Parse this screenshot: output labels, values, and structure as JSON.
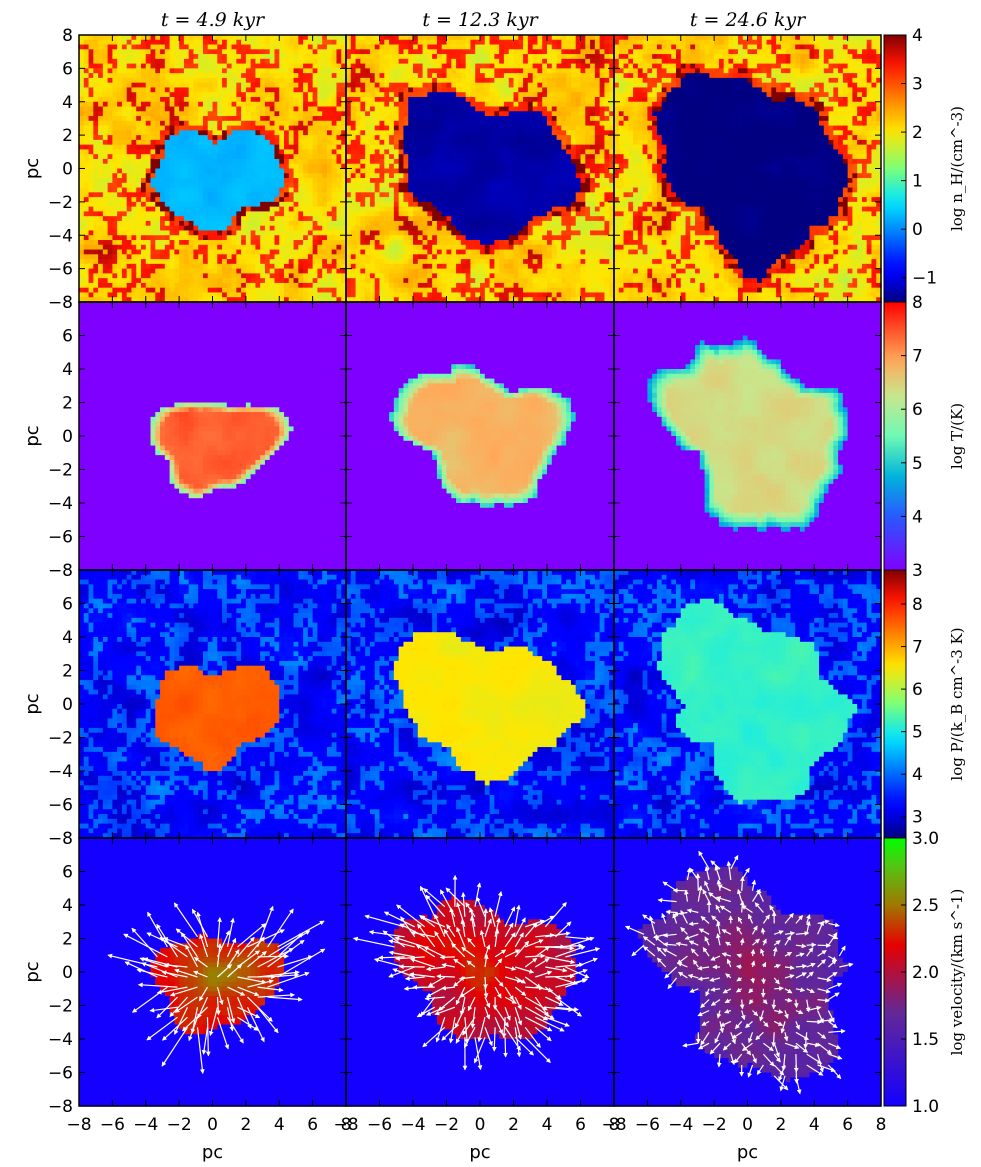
{
  "figure": {
    "column_titles": [
      "t = 4.9 kyr",
      "t = 12.3 kyr",
      "t = 24.6 kyr"
    ],
    "ylabel": "pc",
    "xlabel": "pc",
    "y_ticks": [
      "−8",
      "−6",
      "−4",
      "−2",
      "0",
      "2",
      "4",
      "6",
      "8"
    ],
    "y_ticks_inner": [
      "−8",
      "−6",
      "−4",
      "−2",
      "0",
      "2",
      "4",
      "6"
    ],
    "x_ticks": [
      "−8",
      "−6",
      "−4",
      "−2",
      "0",
      "2",
      "4",
      "6",
      "8"
    ],
    "colors": {
      "purple_bg": "#7a1bff",
      "blue_bg": "#0c1df2",
      "quiver": "#ffffff"
    }
  },
  "rows": [
    {
      "quantity": "density",
      "colorbar_label": "log n_H/(cm^-3)",
      "colorbar_ticks": [
        "4",
        "3",
        "2",
        "1",
        "0",
        "−1"
      ],
      "range": [
        -1.5,
        4
      ]
    },
    {
      "quantity": "temperature",
      "colorbar_label": "log T/(K)",
      "colorbar_ticks": [
        "8",
        "7",
        "6",
        "5",
        "4",
        "3"
      ],
      "range": [
        3,
        8
      ]
    },
    {
      "quantity": "pressure",
      "colorbar_label": "log P/(k_B cm^-3 K)",
      "colorbar_ticks": [
        "8",
        "7",
        "6",
        "5",
        "4",
        "3",
        "3.0"
      ],
      "range": [
        2.5,
        8.8
      ]
    },
    {
      "quantity": "velocity",
      "colorbar_label": "log velocity/(km s^-1)",
      "colorbar_ticks": [
        "2.5",
        "2.0",
        "1.5",
        "1.0"
      ],
      "range": [
        1.0,
        3.0
      ]
    }
  ],
  "chart_data": {
    "type": "heatmap",
    "title": "",
    "xlabel": "pc",
    "ylabel": "pc",
    "xlim": [
      -8,
      8
    ],
    "ylim": [
      -8,
      8
    ],
    "columns": [
      {
        "title": "t = 4.9 kyr",
        "time_kyr": 4.9,
        "bubble_center_pc": [
          0.2,
          -0.5
        ],
        "bubble_radius_pc": 3.3
      },
      {
        "title": "t = 12.3 kyr",
        "time_kyr": 12.3,
        "bubble_center_pc": [
          0.3,
          0.0
        ],
        "bubble_radius_pc": 4.5
      },
      {
        "title": "t = 24.6 kyr",
        "time_kyr": 24.6,
        "bubble_center_pc": [
          0.4,
          0.0
        ],
        "bubble_radius_pc": 5.5
      }
    ],
    "panels": {
      "density": {
        "ambient_range": [
          1.5,
          3.5
        ],
        "bubble_interior": [
          0.3,
          -1.3,
          -1.5
        ]
      },
      "temperature": {
        "ambient": 3.0,
        "bubble_interior": [
          7.4,
          6.8,
          6.4
        ]
      },
      "pressure": {
        "ambient_range": [
          2.7,
          4.5
        ],
        "bubble_interior": [
          7.6,
          6.5,
          5.2
        ]
      },
      "velocity": {
        "ambient": 1.0,
        "bubble_interior": [
          2.5,
          2.3,
          1.9
        ]
      }
    },
    "colorbars": [
      {
        "label": "log n_H/(cm^-3)",
        "min": -1.5,
        "max": 4
      },
      {
        "label": "log T/(K)",
        "min": 3,
        "max": 8
      },
      {
        "label": "log P/(k_B cm^-3 K)",
        "min": 2.5,
        "max": 8.8
      },
      {
        "label": "log velocity/(km s^-1)",
        "min": 1.0,
        "max": 3.0
      }
    ]
  }
}
